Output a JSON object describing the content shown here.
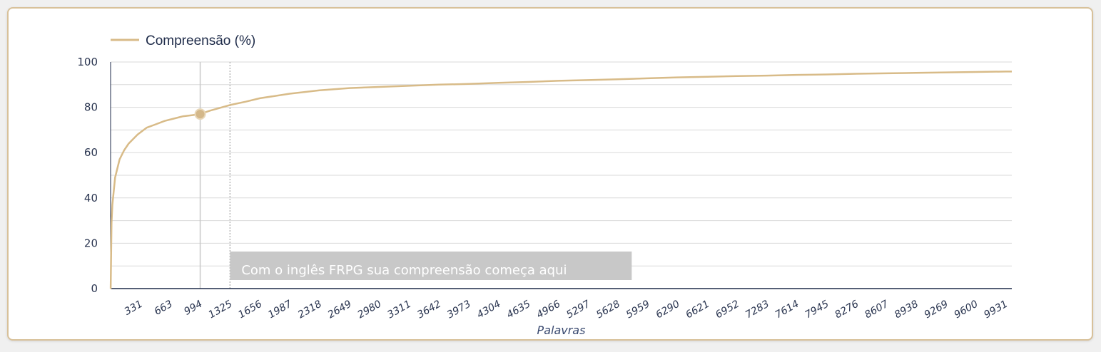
{
  "chart_data": {
    "type": "line",
    "legend": {
      "label": "Compreensão (%)",
      "placement": "top-left"
    },
    "xlabel": "Palavras",
    "ylabel": "",
    "xlim": [
      0,
      10000
    ],
    "ylim": [
      0,
      100
    ],
    "yticks": [
      0,
      20,
      40,
      60,
      80,
      100
    ],
    "xticks": [
      331,
      663,
      994,
      1325,
      1656,
      1987,
      2318,
      2649,
      2980,
      3311,
      3642,
      3973,
      4304,
      4635,
      4966,
      5297,
      5628,
      5959,
      6290,
      6621,
      6952,
      7283,
      7614,
      7945,
      8276,
      8607,
      8938,
      9269,
      9600,
      9931
    ],
    "grid": true,
    "series": [
      {
        "name": "Compreensão (%)",
        "color": "#d8bb88",
        "x": [
          1,
          10,
          20,
          50,
          100,
          150,
          200,
          300,
          400,
          500,
          600,
          700,
          800,
          900,
          994,
          1100,
          1325,
          1500,
          1656,
          1987,
          2318,
          2649,
          2980,
          3311,
          3642,
          3973,
          4304,
          4635,
          4966,
          5297,
          5628,
          5959,
          6290,
          6621,
          6952,
          7283,
          7614,
          7945,
          8276,
          8607,
          8938,
          9269,
          9600,
          9931,
          10000
        ],
        "y": [
          0,
          29,
          37,
          49,
          57,
          61,
          64,
          68,
          71,
          72.5,
          74,
          75,
          76,
          76.5,
          77,
          78.5,
          81,
          82.5,
          84,
          86,
          87.5,
          88.5,
          89,
          89.5,
          90,
          90.3,
          90.8,
          91.2,
          91.7,
          92,
          92.4,
          92.8,
          93.2,
          93.5,
          93.8,
          94,
          94.3,
          94.5,
          94.8,
          95,
          95.2,
          95.4,
          95.6,
          95.8,
          95.8
        ]
      }
    ],
    "highlight_point": {
      "x": 994,
      "y": 77
    },
    "reference_lines": [
      {
        "x": 994,
        "style": "solid"
      },
      {
        "x": 1325,
        "style": "dotted"
      }
    ],
    "annotation": {
      "text": "Com o inglês FRPG sua compreensão começa aqui",
      "anchor_x": 1325,
      "background": "#c8c8c8"
    },
    "colors": {
      "line": "#d8bb88",
      "point": "#d4b88a",
      "grid": "#d9d9d9",
      "axis": "#1d2a48",
      "text": "#2a3550"
    }
  }
}
